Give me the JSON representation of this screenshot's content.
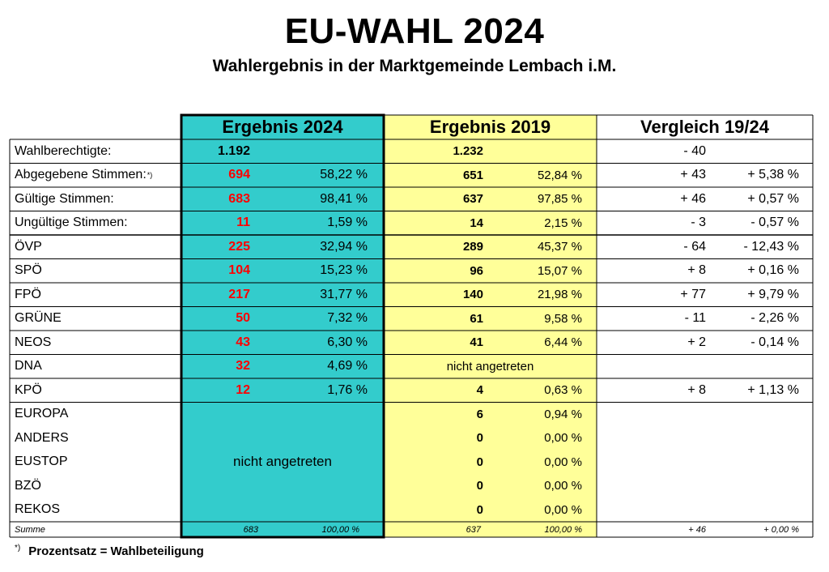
{
  "title": "EU-WAHL 2024",
  "subtitle": "Wahlergebnis in der Marktgemeinde Lembach i.M.",
  "headers": {
    "y2024": "Ergebnis 2024",
    "y2019": "Ergebnis 2019",
    "compare": "Vergleich 19/24"
  },
  "rows": [
    {
      "label": "Wahlberechtigte:",
      "v24": "1.192",
      "p24": "",
      "v19": "1.232",
      "p19": "",
      "d": "- 40",
      "dp": ""
    },
    {
      "label": "Abgegebene Stimmen:",
      "sup": "*)",
      "v24": "694",
      "p24": "58,22 %",
      "v19": "651",
      "p19": "52,84 %",
      "d": "+ 43",
      "dp": "+ 5,38 %"
    },
    {
      "label": "Gültige Stimmen:",
      "v24": "683",
      "p24": "98,41 %",
      "v19": "637",
      "p19": "97,85 %",
      "d": "+ 46",
      "dp": "+ 0,57 %"
    },
    {
      "label": "Ungültige Stimmen:",
      "v24": "11",
      "p24": "1,59 %",
      "v19": "14",
      "p19": "2,15 %",
      "d": "- 3",
      "dp": "- 0,57 %"
    },
    {
      "label": "ÖVP",
      "v24": "225",
      "p24": "32,94 %",
      "v19": "289",
      "p19": "45,37 %",
      "d": "- 64",
      "dp": "- 12,43 %"
    },
    {
      "label": "SPÖ",
      "v24": "104",
      "p24": "15,23 %",
      "v19": "96",
      "p19": "15,07 %",
      "d": "+ 8",
      "dp": "+ 0,16 %"
    },
    {
      "label": "FPÖ",
      "v24": "217",
      "p24": "31,77 %",
      "v19": "140",
      "p19": "21,98 %",
      "d": "+ 77",
      "dp": "+ 9,79 %"
    },
    {
      "label": "GRÜNE",
      "v24": "50",
      "p24": "7,32 %",
      "v19": "61",
      "p19": "9,58 %",
      "d": "- 11",
      "dp": "- 2,26 %"
    },
    {
      "label": "NEOS",
      "v24": "43",
      "p24": "6,30 %",
      "v19": "41",
      "p19": "6,44 %",
      "d": "+ 2",
      "dp": "- 0,14 %"
    },
    {
      "label": "DNA",
      "v24": "32",
      "p24": "4,69 %",
      "v19": "",
      "p19": "",
      "note19": "nicht angetreten",
      "d": "",
      "dp": ""
    },
    {
      "label": "KPÖ",
      "v24": "12",
      "p24": "1,76 %",
      "v19": "4",
      "p19": "0,63 %",
      "d": "+ 8",
      "dp": "+ 1,13 %"
    },
    {
      "label": "EUROPA",
      "v24": "",
      "p24": "",
      "v19": "6",
      "p19": "0,94 %",
      "d": "",
      "dp": ""
    },
    {
      "label": "ANDERS",
      "v24": "",
      "p24": "",
      "v19": "0",
      "p19": "0,00 %",
      "d": "",
      "dp": ""
    },
    {
      "label": "EUSTOP",
      "v24": "",
      "p24": "",
      "v19": "0",
      "p19": "0,00 %",
      "d": "",
      "dp": ""
    },
    {
      "label": "BZÖ",
      "v24": "",
      "p24": "",
      "v19": "0",
      "p19": "0,00 %",
      "d": "",
      "dp": ""
    },
    {
      "label": "REKOS",
      "v24": "",
      "p24": "",
      "v19": "0",
      "p19": "0,00 %",
      "d": "",
      "dp": ""
    }
  ],
  "not_participated_2024": "nicht angetreten",
  "sum": {
    "label": "Summe",
    "v24": "683",
    "p24": "100,00 %",
    "v19": "637",
    "p19": "100,00 %",
    "d": "+ 46",
    "dp": "+ 0,00 %"
  },
  "footnote": {
    "mark": "*)",
    "text": "Prozentsatz = Wahlbeteiligung"
  },
  "colors": {
    "col2024": "#33cccc",
    "col2019": "#ffff99",
    "highlight": "#ff0000"
  }
}
